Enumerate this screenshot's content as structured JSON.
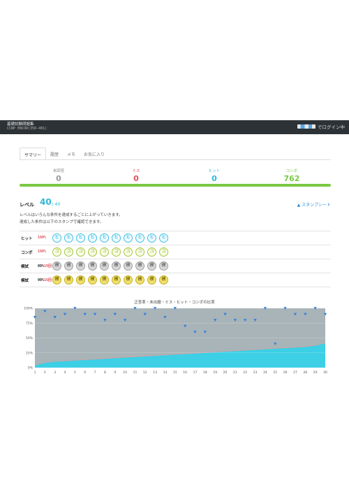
{
  "header": {
    "title": "基礎試験問題集",
    "subtitle": "CCNP ENCOR(350-401)",
    "login_text": "でログイン中",
    "logo_icon": "service-logo"
  },
  "tabs": [
    {
      "label": "サマリー",
      "active": true
    },
    {
      "label": "履歴",
      "active": false
    },
    {
      "label": "メモ",
      "active": false
    },
    {
      "label": "お気に入り",
      "active": false
    }
  ],
  "stats": [
    {
      "label": "未回答",
      "value": "0",
      "color": "#999999"
    },
    {
      "label": "ミス",
      "value": "0",
      "color": "#e0505a"
    },
    {
      "label": "ヒット",
      "value": "0",
      "color": "#2db8d8"
    },
    {
      "label": "コンボ",
      "value": "762",
      "color": "#7ac943"
    }
  ],
  "progress_fraction": 1.0,
  "level": {
    "label": "レベル",
    "value": "40",
    "max": "/ 40",
    "stamp_sheet_label": "▲ スタンプシート",
    "desc1": "レベルはいろんな条件を達成するごとに上がっていきます。",
    "desc2": "達成した条件は以下のスタンプで確認できます。"
  },
  "stamp_rows": [
    {
      "name": "ヒット",
      "pct": "100%",
      "glyph": "ヒ",
      "style": "cyan"
    },
    {
      "name": "コンボ",
      "pct": "100%",
      "glyph": "コ",
      "style": "green"
    },
    {
      "name": "模試",
      "pct": "80%",
      "count": "19回",
      "glyph": "模",
      "style": "gray"
    },
    {
      "name": "模試",
      "pct": "90%",
      "count": "16回",
      "glyph": "模",
      "style": "yellow"
    }
  ],
  "chart_data": {
    "type": "area",
    "title": "正答率・未出題・ミス・ヒット・コンボの比率",
    "x": [
      1,
      2,
      3,
      4,
      5,
      6,
      7,
      8,
      9,
      10,
      11,
      12,
      13,
      14,
      15,
      16,
      17,
      18,
      19,
      20,
      21,
      22,
      23,
      24,
      25,
      26,
      27,
      28,
      29,
      30
    ],
    "y_ticks": [
      "0%",
      "25%",
      "50%",
      "75%",
      "100%"
    ],
    "ylim": [
      0,
      100
    ],
    "series": [
      {
        "values": [
          4,
          8,
          10,
          11,
          12,
          13,
          14,
          15,
          16,
          17,
          18,
          19,
          20,
          21,
          22,
          23,
          24,
          25,
          26,
          27,
          28,
          29,
          30,
          31,
          32,
          33,
          34,
          35,
          37,
          41
        ],
        "color": "#3ccfe6"
      },
      {
        "values": [
          5,
          8,
          10,
          12,
          13,
          14,
          15,
          16,
          17,
          18,
          19,
          20,
          21,
          22,
          23,
          24,
          25,
          26,
          27,
          28,
          29,
          30,
          31,
          32,
          33,
          34,
          35,
          36,
          38,
          42
        ],
        "color": "#d9a0a0"
      },
      {
        "values": [
          100,
          100,
          100,
          100,
          100,
          100,
          100,
          100,
          100,
          100,
          100,
          100,
          100,
          100,
          100,
          100,
          100,
          100,
          100,
          100,
          100,
          100,
          100,
          100,
          100,
          100,
          100,
          100,
          100,
          100
        ],
        "color": "#a8b4b8"
      }
    ],
    "markers": [
      85,
      95,
      85,
      90,
      100,
      90,
      90,
      80,
      90,
      80,
      100,
      90,
      100,
      85,
      100,
      70,
      60,
      60,
      80,
      90,
      80,
      80,
      80,
      100,
      40,
      100,
      90,
      90,
      100,
      90
    ],
    "grid": true
  }
}
